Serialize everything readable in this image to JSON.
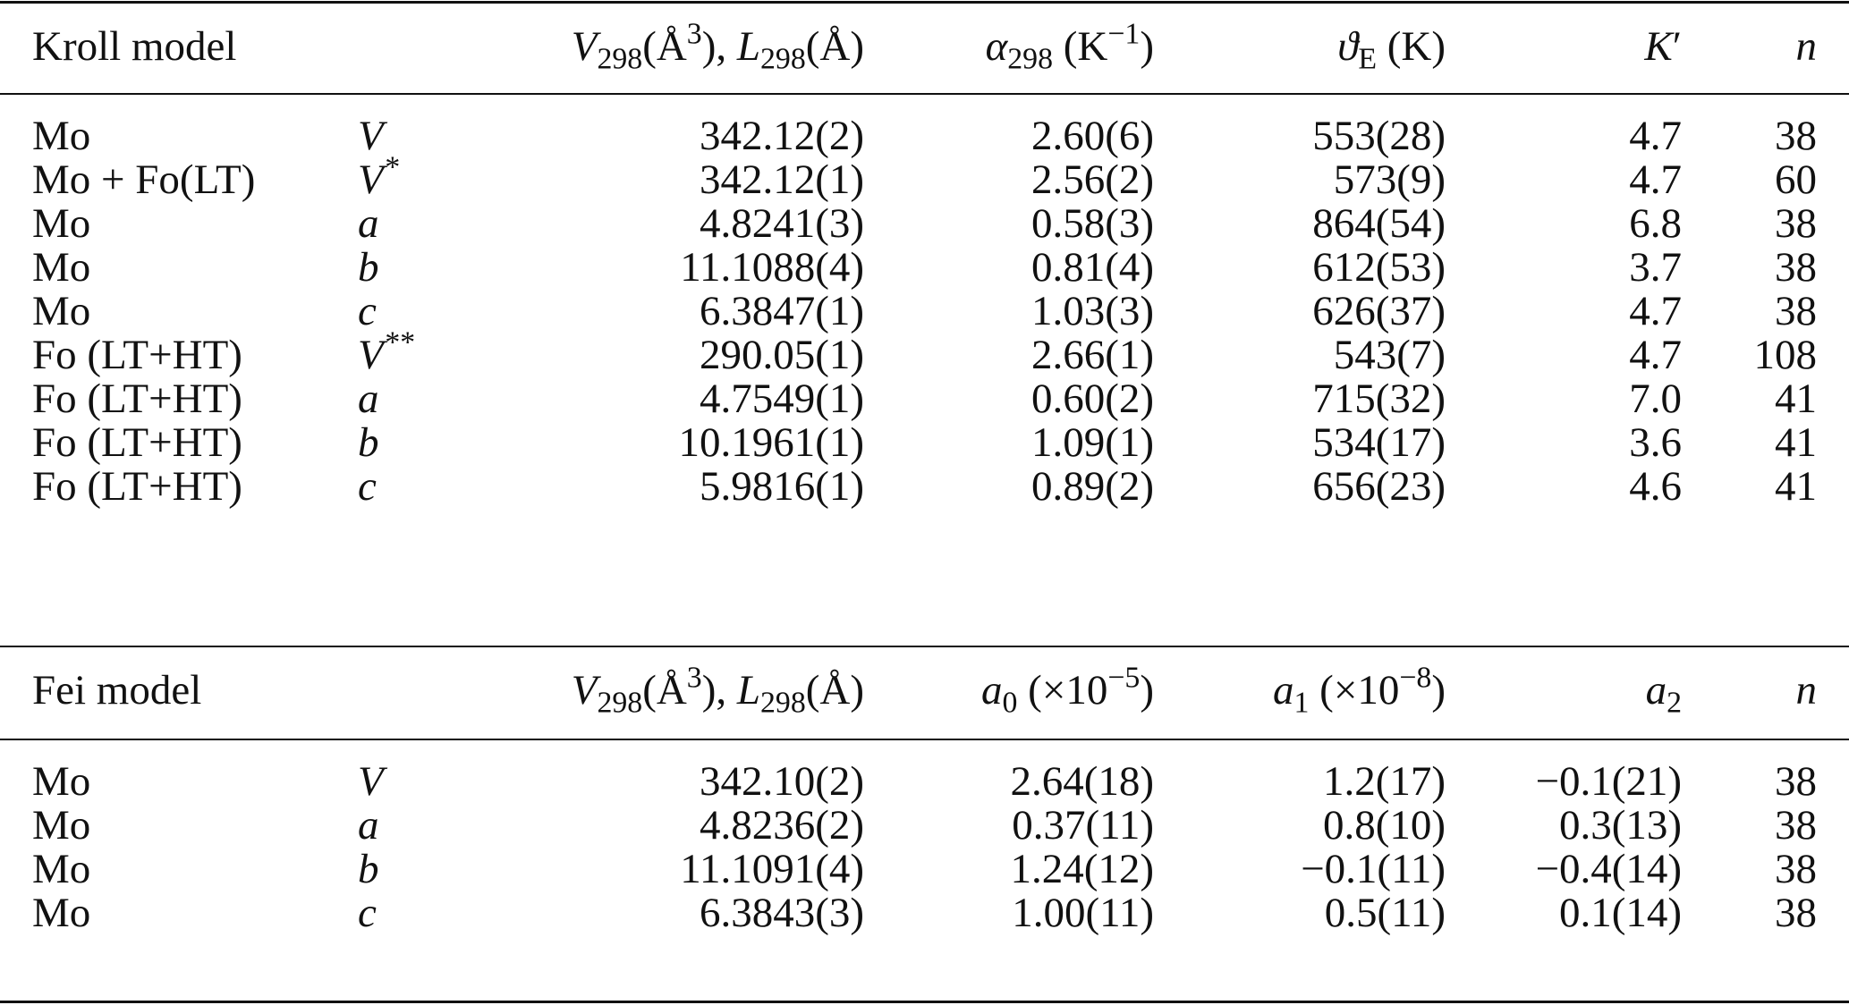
{
  "kroll": {
    "header": {
      "model": "Kroll model",
      "v_prefix": "V",
      "v_sub": "298",
      "v_unit": "(Å",
      "v_sup": "3",
      "v_mid": "), ",
      "l_prefix": "L",
      "l_sub": "298",
      "l_unit": "(Å)",
      "alpha_sym": "α",
      "alpha_sub": "298",
      "alpha_unit": " (K",
      "alpha_sup": "−1",
      "alpha_close": ")",
      "theta_sym": "ϑ",
      "theta_sub": "E",
      "theta_unit": " (K)",
      "k_sym": "K",
      "k_prime": "′",
      "n_sym": "n"
    },
    "rows": [
      {
        "sample": "Mo",
        "param": "V",
        "param_sup": "",
        "l298": "342.12(2)",
        "alpha": "2.60(6)",
        "theta": "553(28)",
        "k": "4.7",
        "n": "38"
      },
      {
        "sample": "Mo + Fo(LT)",
        "param": "V",
        "param_sup": "*",
        "l298": "342.12(1)",
        "alpha": "2.56(2)",
        "theta": "573(9)",
        "k": "4.7",
        "n": "60"
      },
      {
        "sample": "Mo",
        "param": "a",
        "param_sup": "",
        "l298": "4.8241(3)",
        "alpha": "0.58(3)",
        "theta": "864(54)",
        "k": "6.8",
        "n": "38"
      },
      {
        "sample": "Mo",
        "param": "b",
        "param_sup": "",
        "l298": "11.1088(4)",
        "alpha": "0.81(4)",
        "theta": "612(53)",
        "k": "3.7",
        "n": "38"
      },
      {
        "sample": "Mo",
        "param": "c",
        "param_sup": "",
        "l298": "6.3847(1)",
        "alpha": "1.03(3)",
        "theta": "626(37)",
        "k": "4.7",
        "n": "38"
      },
      {
        "sample": "Fo (LT+HT)",
        "param": "V",
        "param_sup": "**",
        "l298": "290.05(1)",
        "alpha": "2.66(1)",
        "theta": "543(7)",
        "k": "4.7",
        "n": "108"
      },
      {
        "sample": "Fo (LT+HT)",
        "param": "a",
        "param_sup": "",
        "l298": "4.7549(1)",
        "alpha": "0.60(2)",
        "theta": "715(32)",
        "k": "7.0",
        "n": "41"
      },
      {
        "sample": "Fo (LT+HT)",
        "param": "b",
        "param_sup": "",
        "l298": "10.1961(1)",
        "alpha": "1.09(1)",
        "theta": "534(17)",
        "k": "3.6",
        "n": "41"
      },
      {
        "sample": "Fo (LT+HT)",
        "param": "c",
        "param_sup": "",
        "l298": "5.9816(1)",
        "alpha": "0.89(2)",
        "theta": "656(23)",
        "k": "4.6",
        "n": "41"
      }
    ]
  },
  "fei": {
    "header": {
      "model": "Fei model",
      "v_prefix": "V",
      "v_sub": "298",
      "v_unit": "(Å",
      "v_sup": "3",
      "v_mid": "), ",
      "l_prefix": "L",
      "l_sub": "298",
      "l_unit": "(Å)",
      "a0_sym": "a",
      "a0_sub": "0",
      "a0_unit": " (×10",
      "a0_sup": "−5",
      "a0_close": ")",
      "a1_sym": "a",
      "a1_sub": "1",
      "a1_unit": " (×10",
      "a1_sup": "−8",
      "a1_close": ")",
      "a2_sym": "a",
      "a2_sub": "2",
      "n_sym": "n"
    },
    "rows": [
      {
        "sample": "Mo",
        "param": "V",
        "l298": "342.10(2)",
        "a0": "2.64(18)",
        "a1": "1.2(17)",
        "a2": "−0.1(21)",
        "n": "38"
      },
      {
        "sample": "Mo",
        "param": "a",
        "l298": "4.8236(2)",
        "a0": "0.37(11)",
        "a1": "0.8(10)",
        "a2": "0.3(13)",
        "n": "38"
      },
      {
        "sample": "Mo",
        "param": "b",
        "l298": "11.1091(4)",
        "a0": "1.24(12)",
        "a1": "−0.1(11)",
        "a2": "−0.4(14)",
        "n": "38"
      },
      {
        "sample": "Mo",
        "param": "c",
        "l298": "6.3843(3)",
        "a0": "1.00(11)",
        "a1": "0.5(11)",
        "a2": "0.1(14)",
        "n": "38"
      }
    ]
  }
}
